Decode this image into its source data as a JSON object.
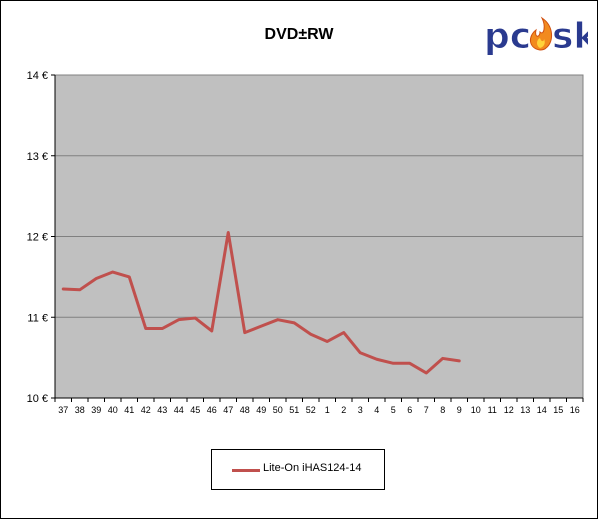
{
  "colors": {
    "line": "#c0504d",
    "plot_bg": "#c0c0c0",
    "grid": "#808080",
    "logo_text": "#2a3a8f",
    "logo_flame": "#f28a1e"
  },
  "logo": {
    "text": "pc sk"
  },
  "chart_data": {
    "type": "line",
    "title": "DVD±RW",
    "xlabel": "",
    "ylabel": "",
    "categories": [
      "37",
      "38",
      "39",
      "40",
      "41",
      "42",
      "43",
      "44",
      "45",
      "46",
      "47",
      "48",
      "49",
      "50",
      "51",
      "52",
      "1",
      "2",
      "3",
      "4",
      "5",
      "6",
      "7",
      "8",
      "9",
      "10",
      "11",
      "12",
      "13",
      "14",
      "15",
      "16"
    ],
    "ylim": [
      10,
      14
    ],
    "yticks": [
      10,
      11,
      12,
      13,
      14
    ],
    "ytick_labels": [
      "10 €",
      "11 €",
      "12 €",
      "13 €",
      "14 €"
    ],
    "grid": true,
    "legend_position": "bottom",
    "series": [
      {
        "name": "Lite-On iHAS124-14",
        "values": [
          11.35,
          11.34,
          11.48,
          11.56,
          11.5,
          10.86,
          10.86,
          10.97,
          10.99,
          10.83,
          12.05,
          10.81,
          10.89,
          10.97,
          10.93,
          10.79,
          10.7,
          10.81,
          10.56,
          10.48,
          10.43,
          10.43,
          10.31,
          10.49,
          10.46,
          null,
          null,
          null,
          null,
          null,
          null,
          null
        ]
      }
    ]
  }
}
